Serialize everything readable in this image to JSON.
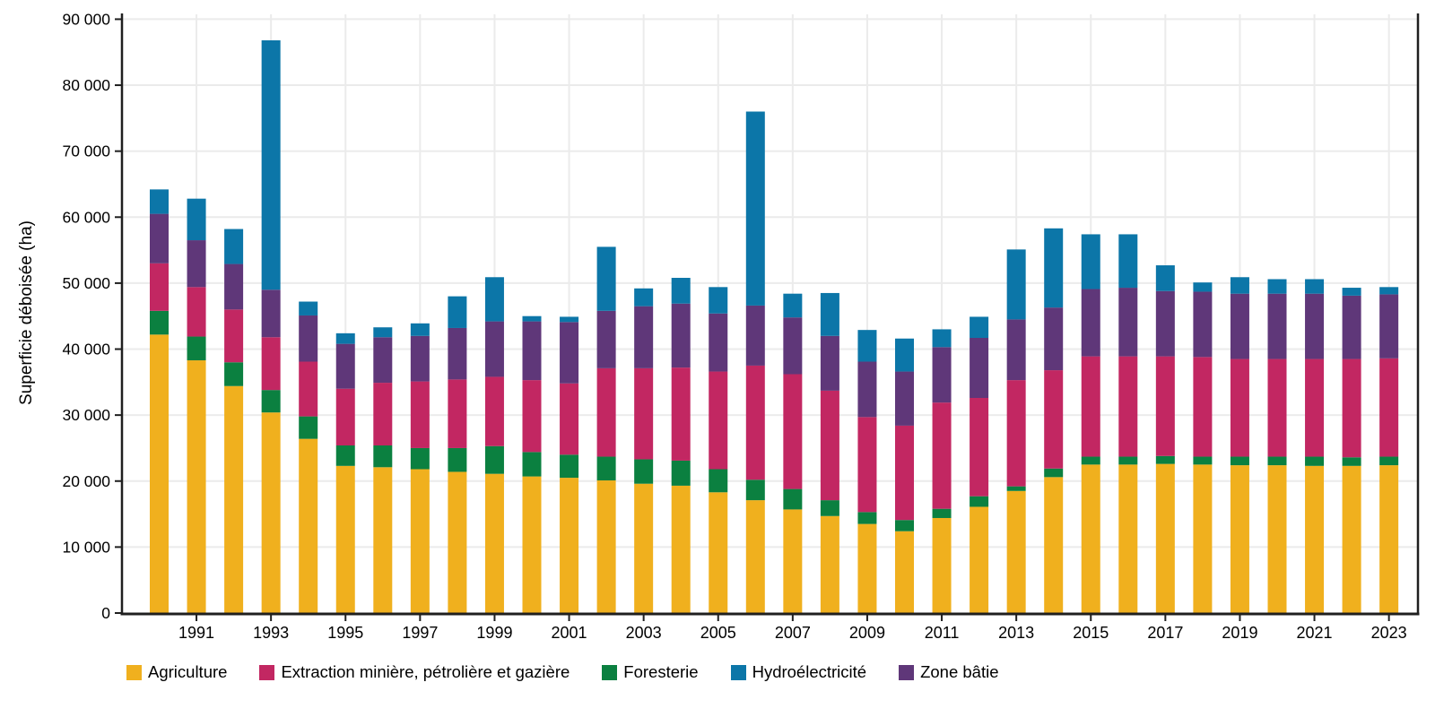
{
  "y_axis": {
    "title": "Superficie déboisée (ha)",
    "tick_values": [
      0,
      10000,
      20000,
      30000,
      40000,
      50000,
      60000,
      70000,
      80000,
      90000
    ],
    "tick_labels": [
      "0",
      "10 000",
      "20 000",
      "30 000",
      "40 000",
      "50 000",
      "60 000",
      "70 000",
      "80 000",
      "90 000"
    ]
  },
  "x_axis": {
    "tick_years": [
      1991,
      1993,
      1995,
      1997,
      1999,
      2001,
      2003,
      2005,
      2007,
      2009,
      2011,
      2013,
      2015,
      2017,
      2019,
      2021,
      2023
    ]
  },
  "colors": {
    "agriculture": "#F0B01E",
    "extraction": "#C22762",
    "foresterie": "#0B8040",
    "hydroelectricite": "#0C76A8",
    "zone_batie": "#5F3779",
    "gridline": "#EBEBEB",
    "axis": "#1F1F1F",
    "text": "#000000"
  },
  "legend": {
    "items": [
      {
        "key": "agriculture",
        "label": "Agriculture"
      },
      {
        "key": "extraction",
        "label": "Extraction minière, pétrolière et gazière"
      },
      {
        "key": "foresterie",
        "label": "Foresterie"
      },
      {
        "key": "hydroelectricite",
        "label": "Hydroélectricité"
      },
      {
        "key": "zone_batie",
        "label": "Zone bâtie"
      }
    ]
  },
  "chart_data": {
    "type": "bar",
    "stacked": true,
    "title": "",
    "xlabel": "",
    "ylabel": "Superficie déboisée (ha)",
    "ylim": [
      0,
      90000
    ],
    "grid": true,
    "legend_position": "bottom",
    "categories": [
      1990,
      1991,
      1992,
      1993,
      1994,
      1995,
      1996,
      1997,
      1998,
      1999,
      2000,
      2001,
      2002,
      2003,
      2004,
      2005,
      2006,
      2007,
      2008,
      2009,
      2010,
      2011,
      2012,
      2013,
      2014,
      2015,
      2016,
      2017,
      2018,
      2019,
      2020,
      2021,
      2022,
      2023
    ],
    "stack_order": [
      "agriculture",
      "foresterie",
      "extraction",
      "zone_batie",
      "hydroelectricite"
    ],
    "series": [
      {
        "key": "agriculture",
        "name": "Agriculture",
        "values": [
          42200,
          38300,
          34400,
          30400,
          26400,
          22300,
          22100,
          21800,
          21400,
          21100,
          20700,
          20500,
          20100,
          19600,
          19300,
          18300,
          17100,
          15700,
          14700,
          13500,
          12400,
          14400,
          16100,
          18500,
          20600,
          22500,
          22500,
          22600,
          22500,
          22400,
          22400,
          22300,
          22300,
          22400
        ]
      },
      {
        "key": "foresterie",
        "name": "Foresterie",
        "values": [
          3600,
          3600,
          3600,
          3400,
          3400,
          3100,
          3300,
          3200,
          3600,
          4200,
          3700,
          3500,
          3600,
          3700,
          3800,
          3500,
          3100,
          3100,
          2400,
          1800,
          1700,
          1400,
          1600,
          700,
          1300,
          1200,
          1200,
          1200,
          1200,
          1300,
          1300,
          1400,
          1300,
          1300
        ]
      },
      {
        "key": "extraction",
        "name": "Extraction minière, pétrolière et gazière",
        "values": [
          7200,
          7500,
          8000,
          8000,
          8300,
          8600,
          9500,
          10100,
          10400,
          10500,
          10900,
          10800,
          13400,
          13800,
          14100,
          14800,
          17300,
          17400,
          16600,
          14400,
          14300,
          16100,
          14900,
          16100,
          14900,
          15200,
          15200,
          15100,
          15100,
          14800,
          14800,
          14800,
          14900,
          14900
        ]
      },
      {
        "key": "zone_batie",
        "name": "Zone bâtie",
        "values": [
          7500,
          7100,
          6900,
          7200,
          7000,
          6800,
          6900,
          6900,
          7800,
          8400,
          8900,
          9300,
          8700,
          9400,
          9700,
          8800,
          9100,
          8600,
          8300,
          8400,
          8200,
          8400,
          9100,
          9200,
          9500,
          10200,
          10400,
          9900,
          9900,
          9900,
          9900,
          9900,
          9600,
          9700
        ]
      },
      {
        "key": "hydroelectricite",
        "name": "Hydroélectricité",
        "values": [
          3700,
          6300,
          5300,
          37800,
          2100,
          1600,
          1500,
          1900,
          4800,
          6700,
          800,
          800,
          9700,
          2700,
          3900,
          4000,
          29400,
          3600,
          6500,
          4800,
          5000,
          2700,
          3200,
          10600,
          12000,
          8300,
          8100,
          3900,
          1400,
          2500,
          2200,
          2200,
          1200,
          1100
        ]
      }
    ]
  }
}
